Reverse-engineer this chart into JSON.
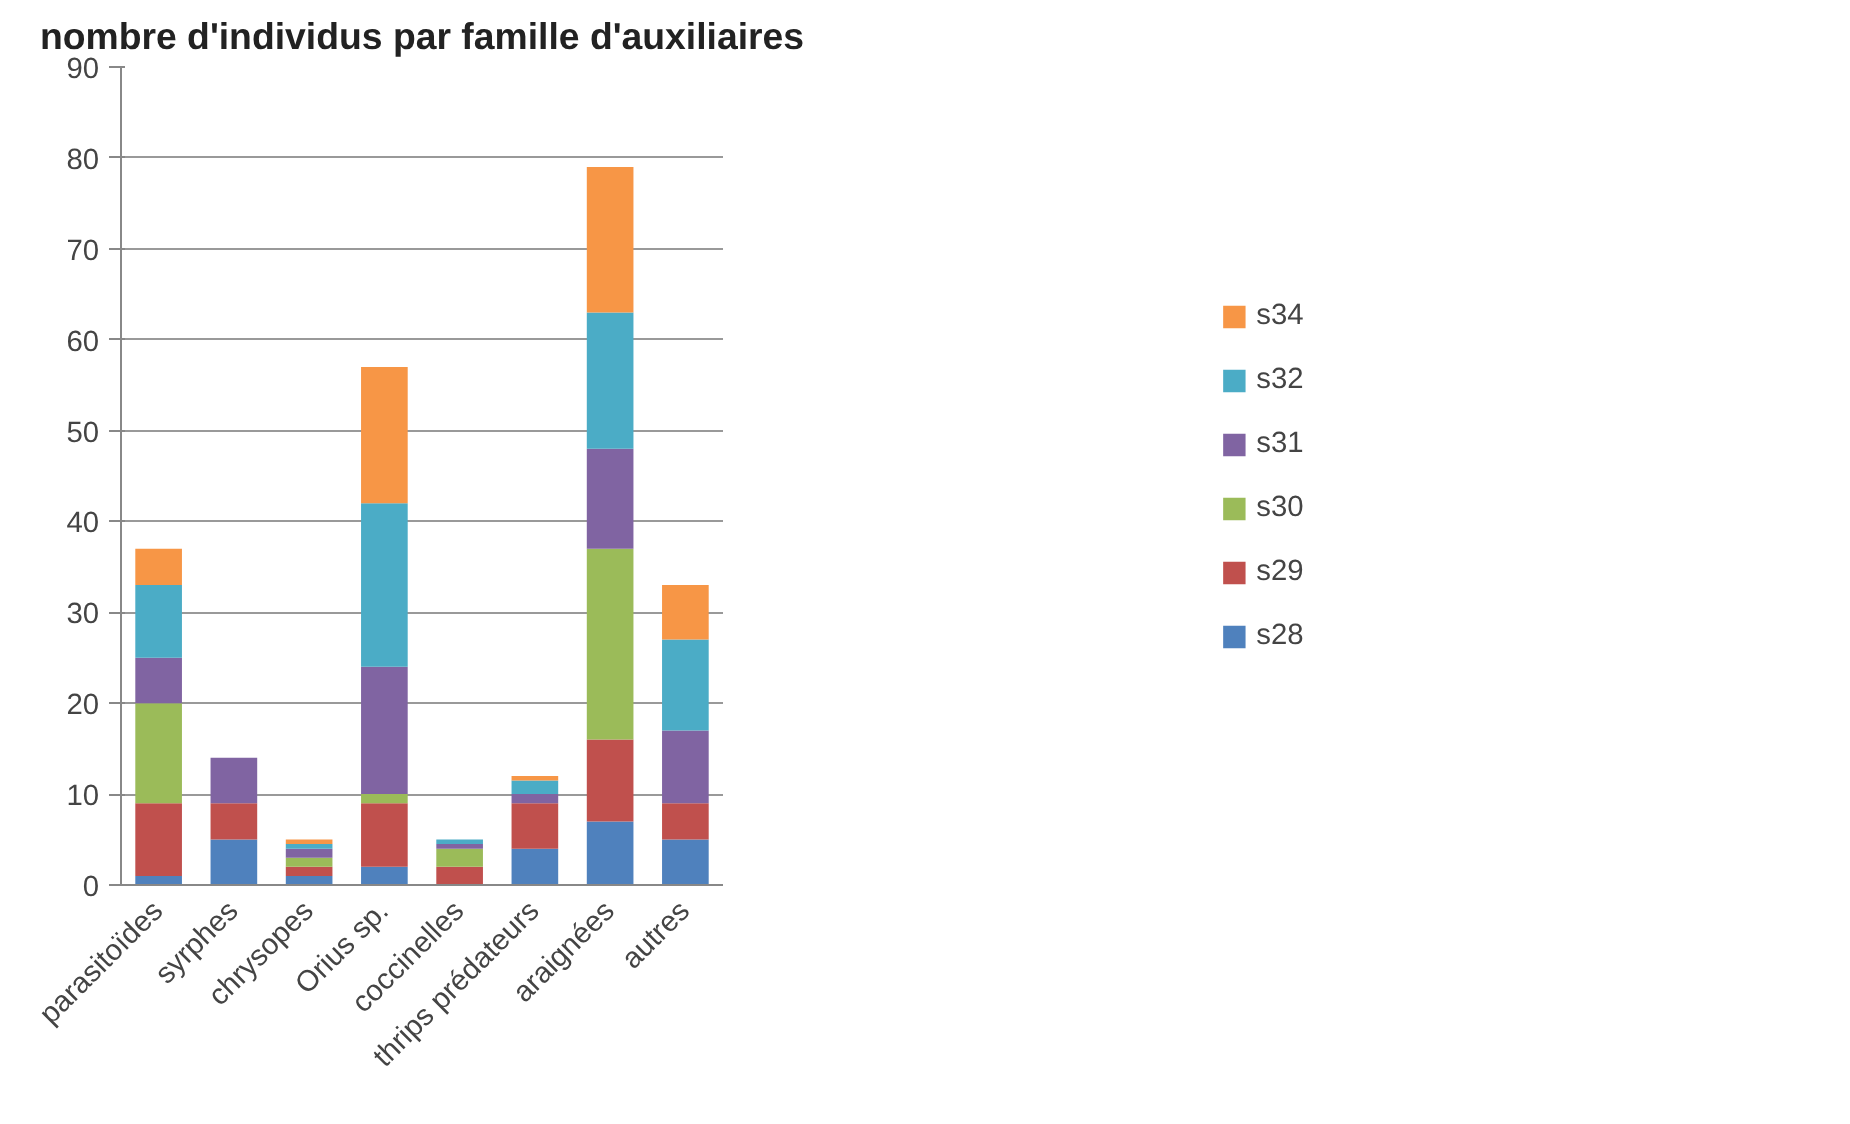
{
  "chart_data": {
    "type": "bar",
    "stacked": true,
    "title": "nombre d'individus par famille d'auxiliaires",
    "categories": [
      "parasitoïdes",
      "syrphes",
      "chrysopes",
      "Orius sp.",
      "coccinelles",
      "thrips prédateurs",
      "araignées",
      "autres"
    ],
    "series": [
      {
        "name": "s28",
        "color": "#4f81bd",
        "values": [
          1,
          5,
          1,
          2,
          0,
          4,
          7,
          5
        ]
      },
      {
        "name": "s29",
        "color": "#c0504d",
        "values": [
          8,
          4,
          1,
          7,
          2,
          5,
          9,
          4
        ]
      },
      {
        "name": "s30",
        "color": "#9bbb59",
        "values": [
          11,
          0,
          1,
          1,
          2,
          0,
          21,
          0
        ]
      },
      {
        "name": "s31",
        "color": "#8064a2",
        "values": [
          5,
          5,
          1,
          14,
          0.5,
          1,
          11,
          8
        ]
      },
      {
        "name": "s32",
        "color": "#4bacc6",
        "values": [
          8,
          0,
          0.5,
          18,
          0.5,
          1.5,
          15,
          10
        ]
      },
      {
        "name": "s34",
        "color": "#f79646",
        "values": [
          4,
          0,
          0.5,
          15,
          0,
          0.5,
          16,
          6
        ]
      }
    ],
    "ylim": [
      0,
      90
    ],
    "yticks": [
      0,
      10,
      20,
      30,
      40,
      50,
      60,
      70,
      80,
      90
    ],
    "grid": "y",
    "legend": "right"
  }
}
